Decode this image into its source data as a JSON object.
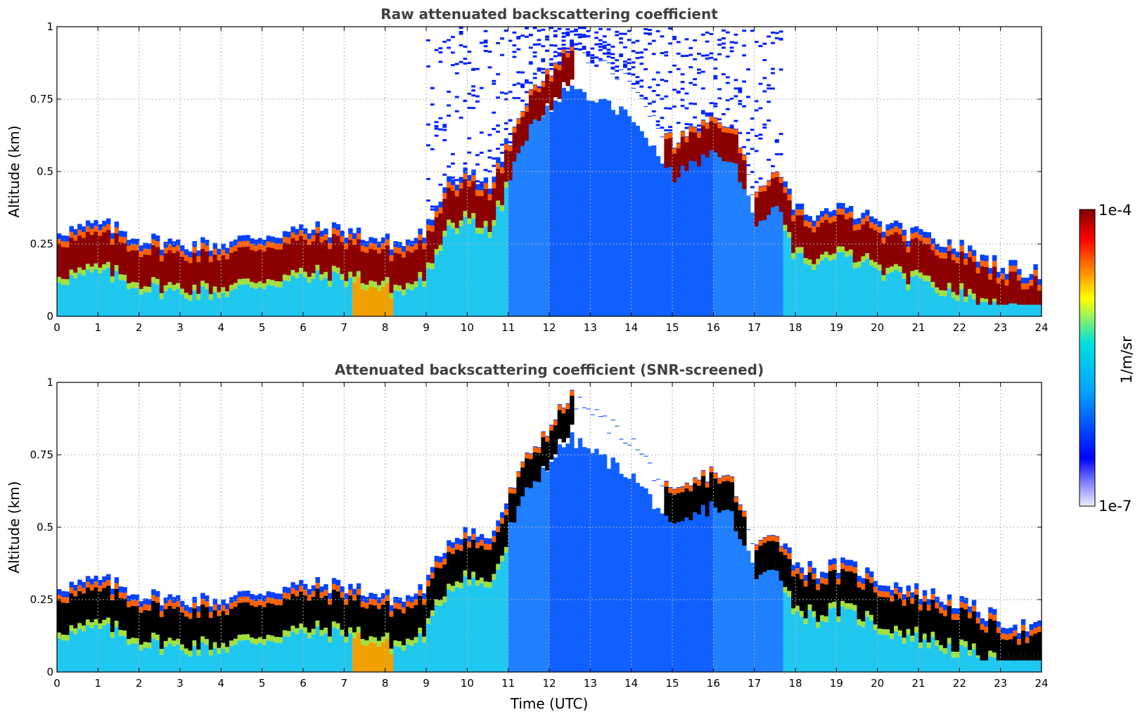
{
  "chart_data": [
    {
      "type": "heatmap",
      "title": "Raw attenuated backscattering coefficient",
      "ylabel": "Altitude (km)",
      "xlabel": "",
      "xlim": [
        0,
        24
      ],
      "ylim": [
        0,
        1
      ],
      "xticks": [
        "0",
        "1",
        "2",
        "3",
        "4",
        "5",
        "6",
        "7",
        "8",
        "9",
        "10",
        "11",
        "12",
        "13",
        "14",
        "15",
        "16",
        "17",
        "18",
        "19",
        "20",
        "21",
        "22",
        "23",
        "24"
      ],
      "yticks": [
        "0",
        "0.25",
        "0.5",
        "0.75",
        "1"
      ],
      "grid": true,
      "screened": false,
      "boundary_layer_top_km": {
        "x": [
          0,
          0.5,
          1,
          1.5,
          2,
          3,
          4,
          5,
          6,
          7,
          7.5,
          8,
          8.5,
          9,
          9.5,
          10,
          10.5,
          11,
          11.5,
          12,
          12.5,
          13,
          14,
          15,
          15.5,
          16,
          16.5,
          17,
          17.5,
          18,
          18.5,
          19,
          19.5,
          20,
          20.5,
          21,
          21.5,
          22,
          22.5,
          23,
          23.5,
          24
        ],
        "y": [
          0.3,
          0.3,
          0.32,
          0.3,
          0.27,
          0.25,
          0.25,
          0.28,
          0.3,
          0.3,
          0.28,
          0.26,
          0.25,
          0.3,
          0.45,
          0.5,
          0.45,
          0.6,
          0.75,
          0.85,
          0.95,
          0.9,
          0.8,
          0.6,
          0.65,
          0.7,
          0.65,
          0.42,
          0.5,
          0.38,
          0.35,
          0.37,
          0.36,
          0.32,
          0.3,
          0.28,
          0.26,
          0.24,
          0.21,
          0.18,
          0.16,
          0.15
        ]
      }
    },
    {
      "type": "heatmap",
      "title": "Attenuated backscattering coefficient (SNR-screened)",
      "ylabel": "Altitude (km)",
      "xlabel": "Time (UTC)",
      "xlim": [
        0,
        24
      ],
      "ylim": [
        0,
        1
      ],
      "xticks": [
        "0",
        "1",
        "2",
        "3",
        "4",
        "5",
        "6",
        "7",
        "8",
        "9",
        "10",
        "11",
        "12",
        "13",
        "14",
        "15",
        "16",
        "17",
        "18",
        "19",
        "20",
        "21",
        "22",
        "23",
        "24"
      ],
      "yticks": [
        "0",
        "0.25",
        "0.5",
        "0.75",
        "1"
      ],
      "grid": true,
      "screened": true
    }
  ],
  "colorbar": {
    "label": "1/m/sr",
    "max_label": "1e-4",
    "min_label": "1e-7",
    "scale": "log",
    "colormap": [
      "#eeeefa",
      "#0000ff",
      "#00a0ff",
      "#00e0e0",
      "#ffff00",
      "#ff8000",
      "#ff0000",
      "#800000"
    ]
  }
}
